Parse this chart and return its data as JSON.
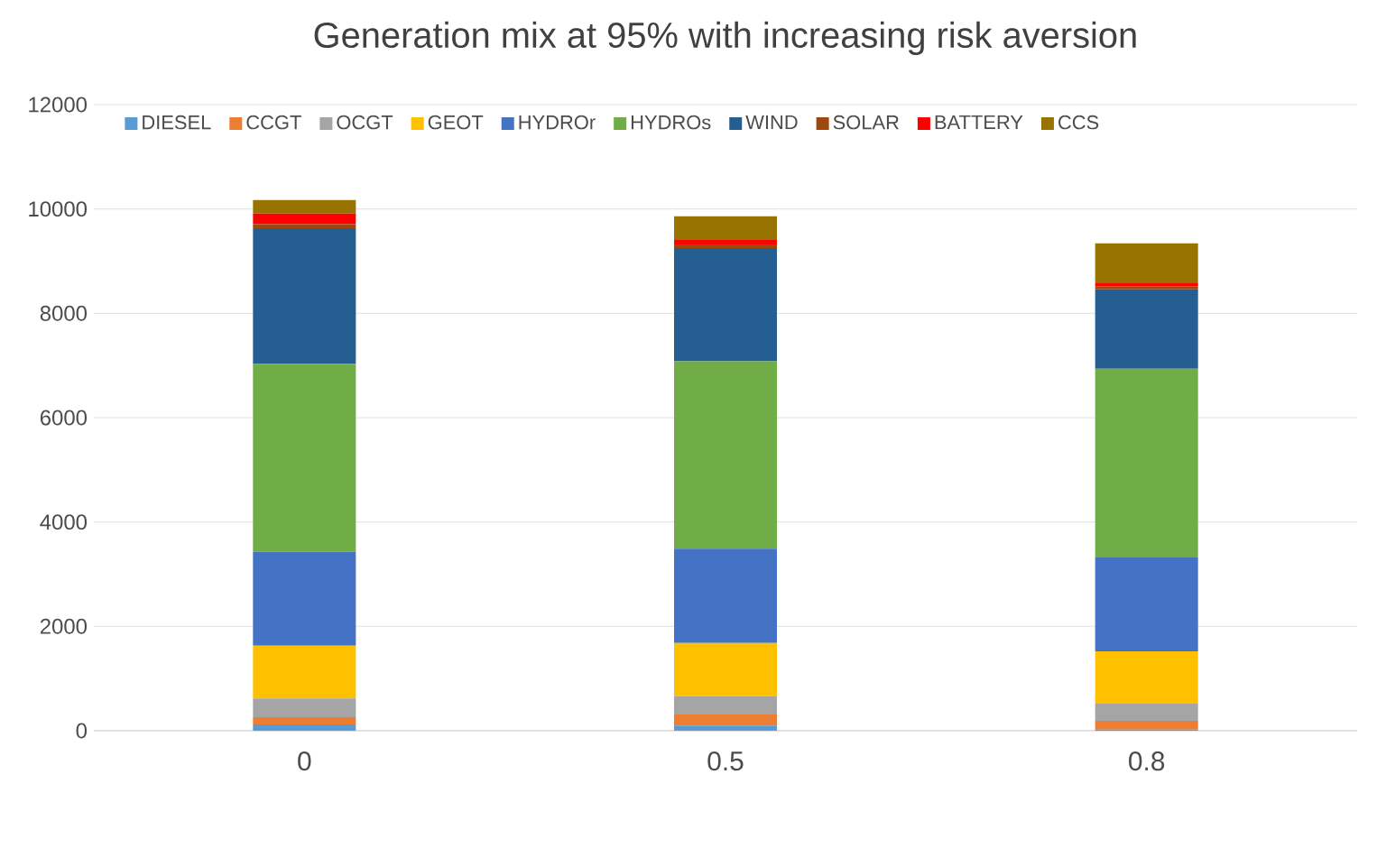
{
  "chart_data": {
    "type": "bar",
    "title": "Generation mix at 95% with increasing risk aversion",
    "categories": [
      "0",
      "0.5",
      "0.8"
    ],
    "stacked": true,
    "ylim": [
      0,
      12000
    ],
    "yticks": [
      0,
      2000,
      4000,
      6000,
      8000,
      10000,
      12000
    ],
    "grid": "y",
    "legend": "top",
    "series": [
      {
        "name": "DIESEL",
        "color": "#5b9bd5",
        "values": [
          120,
          100,
          20
        ]
      },
      {
        "name": "CCGT",
        "color": "#ed7d31",
        "values": [
          140,
          210,
          170
        ]
      },
      {
        "name": "OCGT",
        "color": "#a5a5a5",
        "values": [
          360,
          350,
          330
        ]
      },
      {
        "name": "GEOT",
        "color": "#ffc000",
        "values": [
          1010,
          1020,
          1000
        ]
      },
      {
        "name": "HYDROr",
        "color": "#4472c4",
        "values": [
          1800,
          1810,
          1800
        ]
      },
      {
        "name": "HYDROs",
        "color": "#70ad47",
        "values": [
          3600,
          3590,
          3620
        ]
      },
      {
        "name": "WIND",
        "color": "#255e91",
        "values": [
          2600,
          2170,
          1520
        ]
      },
      {
        "name": "SOLAR",
        "color": "#9e480e",
        "values": [
          80,
          70,
          60
        ]
      },
      {
        "name": "BATTERY",
        "color": "#ff0000",
        "values": [
          200,
          100,
          70
        ]
      },
      {
        "name": "CCS",
        "color": "#997300",
        "values": [
          260,
          440,
          750
        ]
      }
    ]
  }
}
